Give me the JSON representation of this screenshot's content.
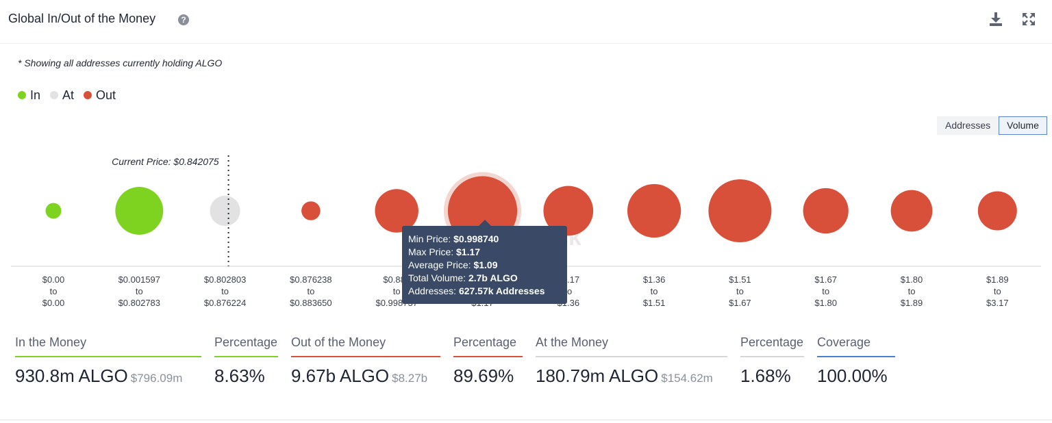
{
  "header": {
    "title": "Global In/Out of the Money",
    "help_glyph": "?",
    "download_icon": "download-icon",
    "expand_icon": "expand-icon"
  },
  "note": "* Showing all addresses currently holding ALGO",
  "legend": [
    {
      "label": "In",
      "color": "#7ed321"
    },
    {
      "label": "At",
      "color": "#e2e2e2"
    },
    {
      "label": "Out",
      "color": "#d9503a"
    }
  ],
  "toggle": {
    "addresses": "Addresses",
    "volume": "Volume",
    "active": "volume"
  },
  "watermark": "block",
  "chart_data": {
    "type": "bubble",
    "current_price_label": "Current Price: $0.842075",
    "current_price_after_index": 2,
    "highlighted_index": 5,
    "buckets": [
      {
        "from": "$0.00",
        "to": "$0.00",
        "status": "in",
        "relative_size": 0.25
      },
      {
        "from": "$0.001597",
        "to": "$0.802783",
        "status": "in",
        "relative_size": 0.76
      },
      {
        "from": "$0.802803",
        "to": "$0.876224",
        "status": "at",
        "relative_size": 0.48
      },
      {
        "from": "$0.876238",
        "to": "$0.883650",
        "status": "out",
        "relative_size": 0.3
      },
      {
        "from": "$0.883",
        "to": "$0.998737",
        "status": "out",
        "relative_size": 0.69
      },
      {
        "from": "$0.998740",
        "to": "$1.17",
        "status": "out",
        "relative_size": 1.1
      },
      {
        "from": "$1.17",
        "to": "$1.36",
        "status": "out",
        "relative_size": 0.79
      },
      {
        "from": "$1.36",
        "to": "$1.51",
        "status": "out",
        "relative_size": 0.85
      },
      {
        "from": "$1.51",
        "to": "$1.67",
        "status": "out",
        "relative_size": 1.0
      },
      {
        "from": "$1.67",
        "to": "$1.80",
        "status": "out",
        "relative_size": 0.72
      },
      {
        "from": "$1.80",
        "to": "$1.89",
        "status": "out",
        "relative_size": 0.66
      },
      {
        "from": "$1.89",
        "to": "$3.17",
        "status": "out",
        "relative_size": 0.62
      }
    ]
  },
  "tooltip": {
    "rows": [
      {
        "label": "Min Price: ",
        "value": "$0.998740"
      },
      {
        "label": "Max Price: ",
        "value": "$1.17"
      },
      {
        "label": "Average Price: ",
        "value": "$1.09"
      },
      {
        "label": "Total Volume: ",
        "value": "2.7b ALGO"
      },
      {
        "label": "Addresses: ",
        "value": "627.57k Addresses"
      }
    ]
  },
  "stats": [
    {
      "id": "in-money",
      "label": "In the Money",
      "value": "930.8m ALGO",
      "sub": "$796.09m",
      "color": "#7ed321"
    },
    {
      "id": "in-pct",
      "label": "Percentage",
      "value": "8.63%",
      "sub": "",
      "color": "#7ed321"
    },
    {
      "id": "out-money",
      "label": "Out of the Money",
      "value": "9.67b ALGO",
      "sub": "$8.27b",
      "color": "#d9503a"
    },
    {
      "id": "out-pct",
      "label": "Percentage",
      "value": "89.69%",
      "sub": "",
      "color": "#d9503a"
    },
    {
      "id": "at-money",
      "label": "At the Money",
      "value": "180.79m ALGO",
      "sub": "$154.62m",
      "color": "#d6d6d6"
    },
    {
      "id": "at-pct",
      "label": "Percentage",
      "value": "1.68%",
      "sub": "",
      "color": "#d6d6d6"
    },
    {
      "id": "coverage",
      "label": "Coverage",
      "value": "100.00%",
      "sub": "",
      "color": "#4a7fd6"
    }
  ]
}
